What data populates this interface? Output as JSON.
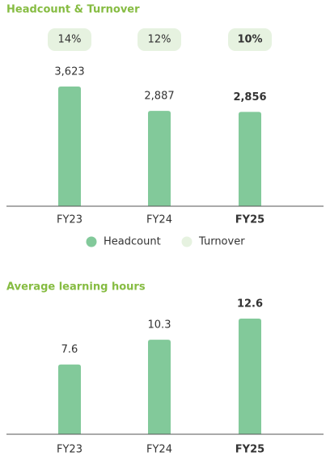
{
  "chart_data": [
    {
      "type": "bar",
      "title": "Headcount & Turnover",
      "categories": [
        "FY23",
        "FY24",
        "FY25"
      ],
      "series": [
        {
          "name": "Headcount",
          "color": "#82c99a",
          "values": [
            3623,
            2887,
            2856
          ],
          "value_labels": [
            "3,623",
            "2,887",
            "2,856"
          ]
        },
        {
          "name": "Turnover",
          "color": "#e6f2e0",
          "values": [
            14,
            12,
            10
          ],
          "value_labels": [
            "14%",
            "12%",
            "10%"
          ]
        }
      ]
    },
    {
      "type": "bar",
      "title": "Average learning hours",
      "categories": [
        "FY23",
        "FY24",
        "FY25"
      ],
      "values": [
        7.6,
        10.3,
        12.6
      ],
      "color": "#82c99a"
    }
  ]
}
